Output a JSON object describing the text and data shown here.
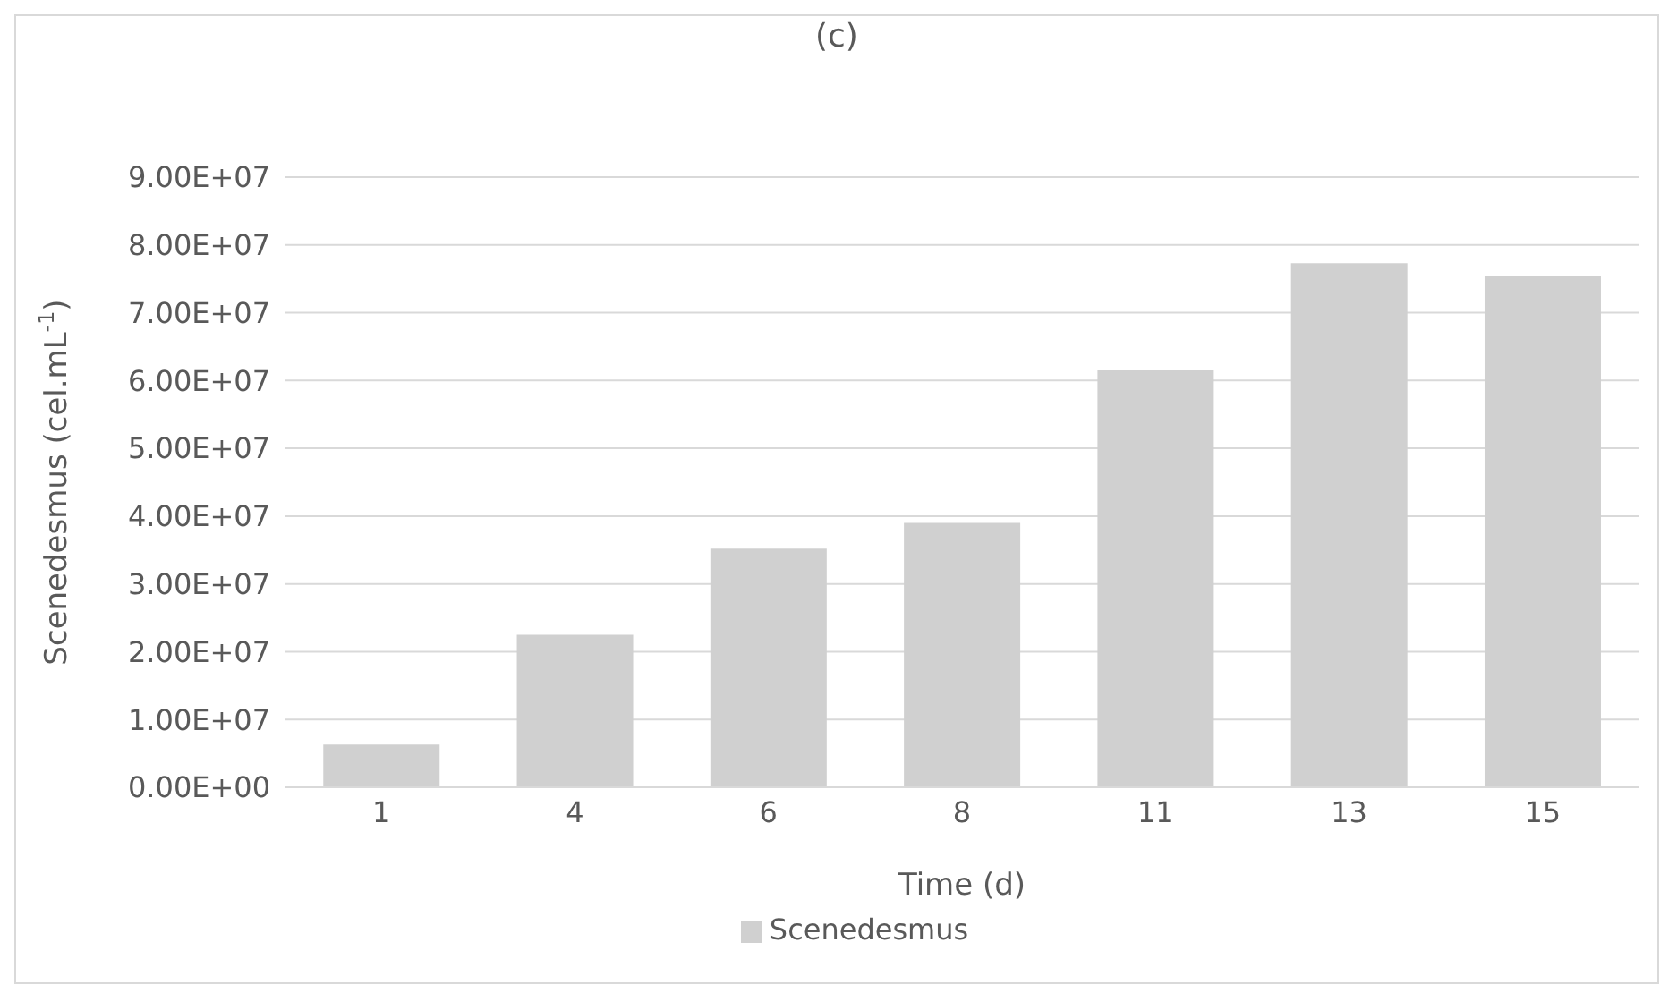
{
  "chart_data": {
    "type": "bar",
    "title": "(c)",
    "xlabel": "Time (d)",
    "ylabel": "Scenedesmus (cel.mL$^{-1}$)",
    "categories": [
      "1",
      "4",
      "6",
      "8",
      "11",
      "13",
      "15"
    ],
    "series": [
      {
        "name": "Scenedesmus",
        "color": "#d0d0d0",
        "values": [
          6300000,
          22500000,
          35200000,
          39000000,
          61500000,
          77300000,
          75400000
        ]
      }
    ],
    "ylim": [
      0,
      90000000
    ],
    "yticks": [
      {
        "value": 0,
        "label": "0.00E+00"
      },
      {
        "value": 10000000,
        "label": "1.00E+07"
      },
      {
        "value": 20000000,
        "label": "2.00E+07"
      },
      {
        "value": 30000000,
        "label": "3.00E+07"
      },
      {
        "value": 40000000,
        "label": "4.00E+07"
      },
      {
        "value": 50000000,
        "label": "5.00E+07"
      },
      {
        "value": 60000000,
        "label": "6.00E+07"
      },
      {
        "value": 70000000,
        "label": "7.00E+07"
      },
      {
        "value": 80000000,
        "label": "8.00E+07"
      },
      {
        "value": 90000000,
        "label": "9.00E+07"
      }
    ],
    "grid": "y",
    "legend": "bottom"
  }
}
